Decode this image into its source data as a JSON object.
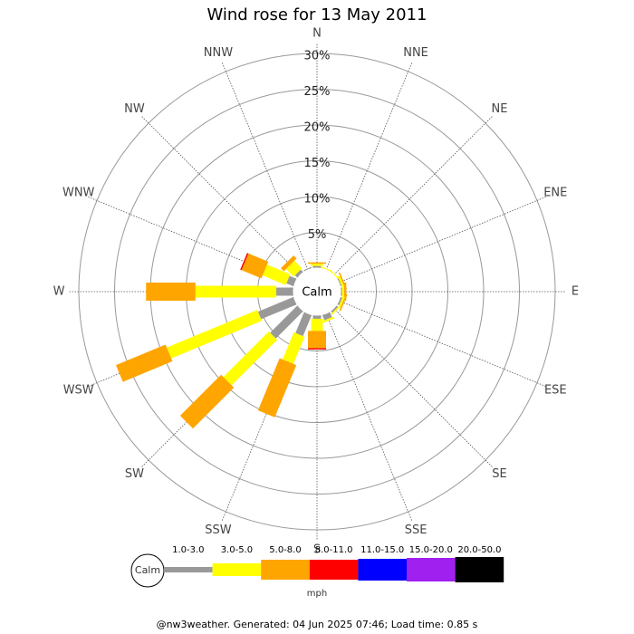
{
  "chart_data": {
    "type": "windrose",
    "title": "Wind rose for 13 May 2011",
    "categories": [
      "N",
      "NNE",
      "NE",
      "ENE",
      "E",
      "ESE",
      "SE",
      "SSE",
      "S",
      "SSW",
      "SW",
      "WSW",
      "W",
      "WNW",
      "NW",
      "NNW"
    ],
    "rlim": [
      0,
      30
    ],
    "rticks": [
      {
        "value": 5,
        "label": "5%"
      },
      {
        "value": 10,
        "label": "10%"
      },
      {
        "value": 15,
        "label": "15%"
      },
      {
        "value": 20,
        "label": "20%"
      },
      {
        "value": 25,
        "label": "25%"
      },
      {
        "value": 30,
        "label": "30%"
      }
    ],
    "center_label": "Calm",
    "unit_label": "mph",
    "footer": "@nw3weather. Generated: 04 Jun 2025 07:46; Load time: 0.85 s",
    "series": [
      {
        "name": "1.0-3.0",
        "color": "#999999",
        "values": [
          0.3,
          0,
          0,
          0.2,
          0.2,
          0.3,
          0.3,
          0.8,
          0.5,
          3.2,
          5.4,
          5.4,
          2.4,
          1.1,
          0.5,
          0.2
        ]
      },
      {
        "name": "3.0-5.0",
        "color": "#ffff00",
        "values": [
          0.3,
          0.2,
          0.2,
          0.3,
          0.3,
          0.3,
          0.2,
          0.3,
          1.7,
          4.1,
          9.0,
          13.7,
          11.3,
          3.5,
          1.5,
          0
        ]
      },
      {
        "name": "5.0-8.0",
        "color": "#ffa500",
        "values": [
          0.2,
          0,
          0,
          0.2,
          0.3,
          0.2,
          0,
          0,
          2.4,
          7.9,
          8.1,
          7.5,
          6.9,
          3.0,
          0.6,
          0
        ]
      },
      {
        "name": "8.0-11.0",
        "color": "#ff0000",
        "values": [
          0,
          0,
          0,
          0,
          0,
          0,
          0,
          0,
          0.2,
          0,
          0,
          0,
          0,
          0.2,
          0,
          0
        ]
      },
      {
        "name": "11.0-15.0",
        "color": "#0000ff",
        "values": [
          0,
          0,
          0,
          0,
          0,
          0,
          0,
          0,
          0,
          0,
          0,
          0,
          0,
          0,
          0,
          0
        ]
      },
      {
        "name": "15.0-20.0",
        "color": "#a020f0",
        "values": [
          0,
          0,
          0,
          0,
          0,
          0,
          0,
          0,
          0,
          0,
          0,
          0,
          0,
          0,
          0,
          0
        ]
      },
      {
        "name": "20.0-50.0",
        "color": "#000000",
        "values": [
          0,
          0,
          0,
          0,
          0,
          0,
          0,
          0,
          0,
          0,
          0,
          0,
          0,
          0,
          0,
          0
        ]
      }
    ]
  }
}
